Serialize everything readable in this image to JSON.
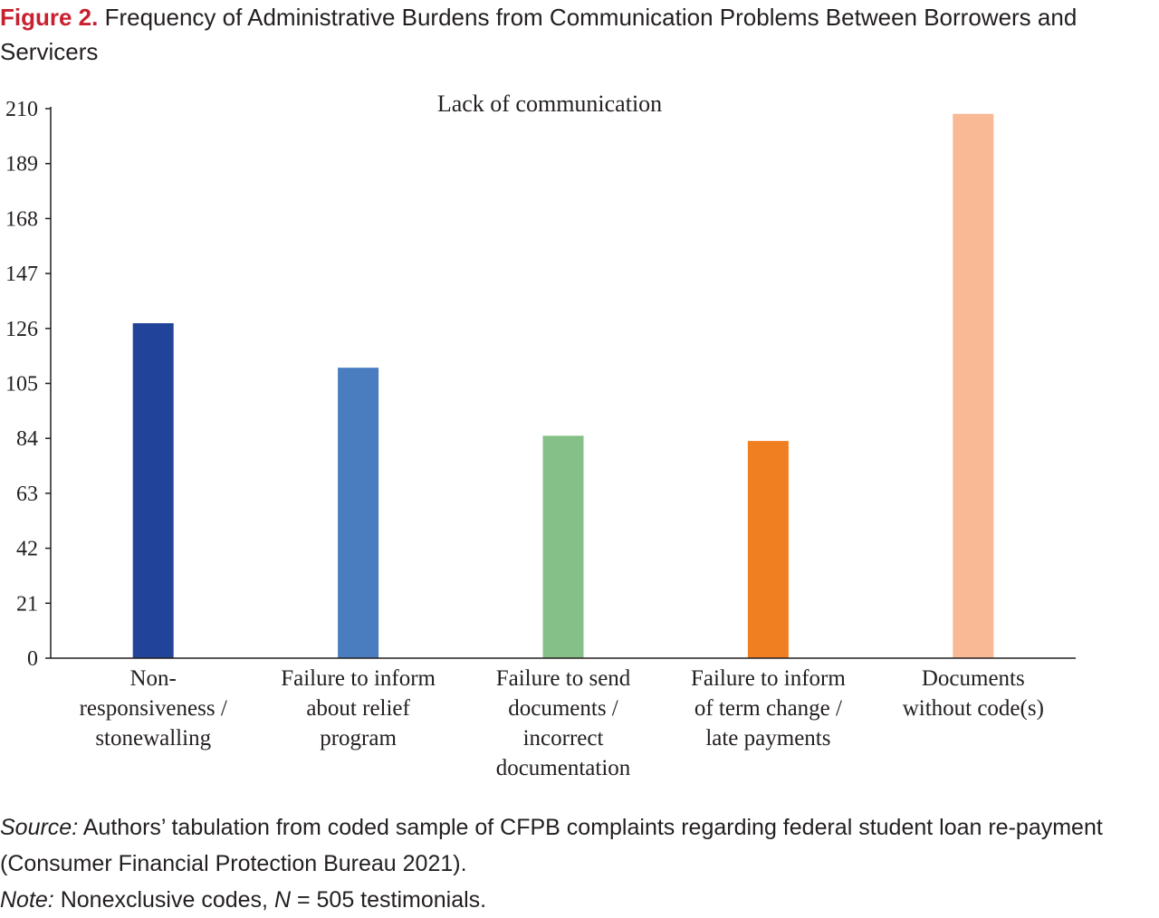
{
  "figure": {
    "label": "Figure 2.",
    "caption": "Frequency of Administrative Burdens from Communication Problems Between Borrowers and Servicers"
  },
  "chart_data": {
    "type": "bar",
    "title": "Lack of communication",
    "categories": [
      [
        "Non-",
        "responsiveness /",
        "stonewalling"
      ],
      [
        "Failure to inform",
        "about relief",
        "program"
      ],
      [
        "Failure to send",
        "documents /",
        "incorrect",
        "documentation"
      ],
      [
        "Failure to inform",
        "of term change /",
        "late payments"
      ],
      [
        "Documents",
        "without code(s)"
      ]
    ],
    "values": [
      128,
      111,
      85,
      83,
      208
    ],
    "colors": [
      "#21449a",
      "#4a7dbf",
      "#84c087",
      "#f07f22",
      "#f8b994"
    ],
    "yticks": [
      0,
      21,
      42,
      63,
      84,
      105,
      126,
      147,
      168,
      189,
      210
    ],
    "ylim": [
      0,
      210
    ],
    "xlabel": "",
    "ylabel": "",
    "grid": false,
    "legend": "none"
  },
  "notes": {
    "source_label": "Source:",
    "source_text": " Authors’ tabulation from coded sample of CFPB complaints regarding federal student loan re-payment (Consumer Financial Protection Bureau 2021).",
    "note_label": "Note:",
    "note_text_1": " Nonexclusive codes, ",
    "note_n": "N",
    "note_text_2": " = 505 testimonials."
  }
}
